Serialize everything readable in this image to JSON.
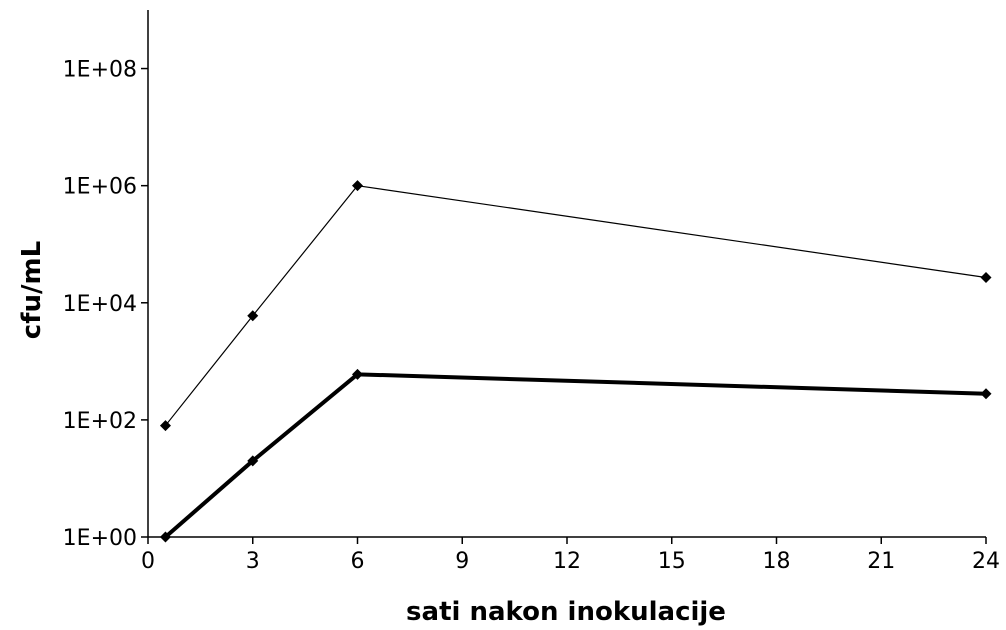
{
  "chart_data": {
    "type": "line",
    "title": "",
    "xlabel": "sati nakon inokulacije",
    "ylabel": "cfu/mL",
    "xlim": [
      0,
      24
    ],
    "ylim": [
      1,
      1000000000
    ],
    "y_scale": "log",
    "x_ticks": [
      0,
      3,
      6,
      9,
      12,
      15,
      18,
      21,
      24
    ],
    "y_ticks": [
      {
        "value": 1,
        "label": "1E+00"
      },
      {
        "value": 100,
        "label": "1E+02"
      },
      {
        "value": 10000,
        "label": "1E+04"
      },
      {
        "value": 1000000,
        "label": "1E+06"
      },
      {
        "value": 100000000,
        "label": "1E+08"
      }
    ],
    "grid": false,
    "legend": "none",
    "series": [
      {
        "style": "thin",
        "color": "#000000",
        "marker": "diamond",
        "x": [
          0.5,
          3,
          6,
          24
        ],
        "y": [
          80,
          6000,
          1000000,
          27000
        ]
      },
      {
        "style": "thick",
        "color": "#000000",
        "marker": "diamond",
        "x": [
          0.5,
          3,
          6,
          24
        ],
        "y": [
          1,
          20,
          600,
          280
        ]
      }
    ]
  }
}
